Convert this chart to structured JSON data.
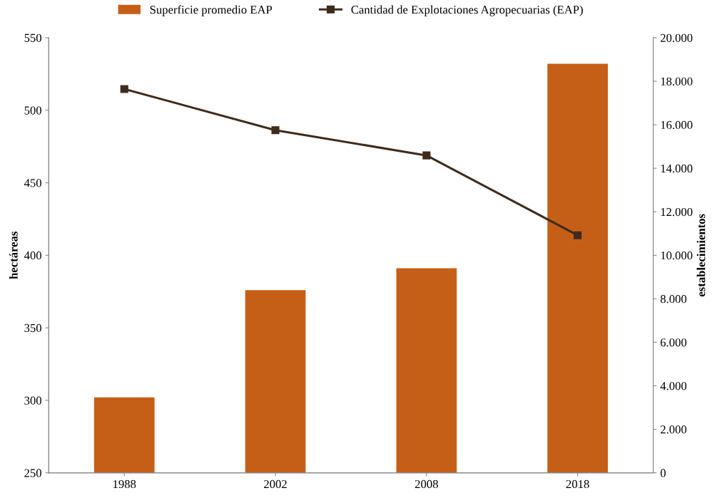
{
  "chart_data": {
    "type": "bar",
    "categories": [
      "1988",
      "2002",
      "2008",
      "2018"
    ],
    "ylabel": "hectáreas",
    "y2label": "establecimientos",
    "ylim": [
      250,
      550
    ],
    "yticks": [
      250,
      300,
      350,
      400,
      450,
      500,
      550
    ],
    "y2lim": [
      0,
      20000
    ],
    "y2ticks": [
      {
        "value": 0,
        "label": "0"
      },
      {
        "value": 2000,
        "label": "2.000"
      },
      {
        "value": 4000,
        "label": "4.000"
      },
      {
        "value": 6000,
        "label": "6.000"
      },
      {
        "value": 8000,
        "label": "8.000"
      },
      {
        "value": 10000,
        "label": "10.000"
      },
      {
        "value": 12000,
        "label": "12.000"
      },
      {
        "value": 14000,
        "label": "14.000"
      },
      {
        "value": 16000,
        "label": "16.000"
      },
      {
        "value": 18000,
        "label": "18.000"
      },
      {
        "value": 20000,
        "label": "20.000"
      }
    ],
    "series": [
      {
        "name": "Superficie promedio EAP",
        "color": "#c55f17",
        "values": [
          302,
          376,
          391,
          532
        ]
      },
      {
        "name": "Cantidad de Explotaciones Agropecuarias (EAP)",
        "type": "line",
        "axis": "y2",
        "color": "#3f2b1c",
        "marker": "square",
        "values": [
          17640,
          15750,
          14590,
          10920
        ]
      }
    ],
    "grid": false,
    "legend": "top"
  }
}
